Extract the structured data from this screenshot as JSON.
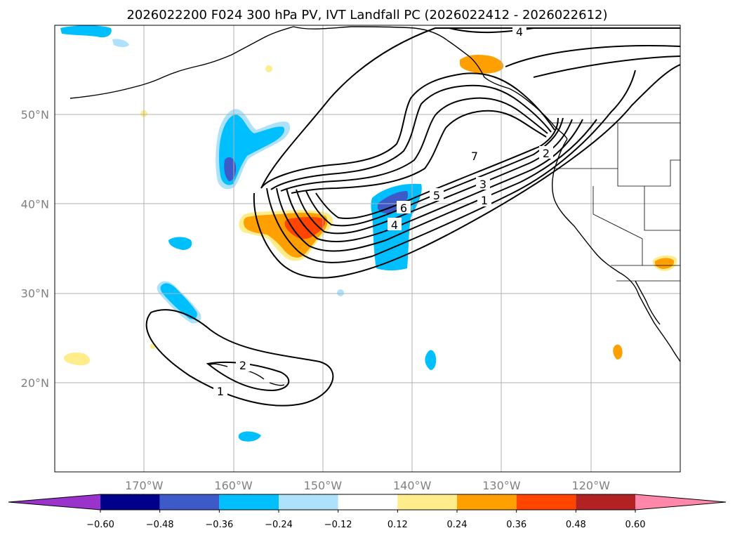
{
  "chart_data": {
    "type": "contour-map",
    "title": "2026022200 F024 300 hPa PV, IVT Landfall PC (2026022412 - 2026022612)",
    "map": {
      "projection": "PlateCarree",
      "lon_range": [
        -180,
        -110
      ],
      "lat_range": [
        10,
        60
      ],
      "gridlines": true,
      "lon_ticks": [
        -170,
        -160,
        -150,
        -140,
        -130,
        -120
      ],
      "lat_ticks": [
        20,
        30,
        40,
        50
      ],
      "lon_tick_labels": [
        "170°W",
        "160°W",
        "150°W",
        "140°W",
        "130°W",
        "120°W"
      ],
      "lat_tick_labels": [
        "20°N",
        "30°N",
        "40°N",
        "50°N"
      ]
    },
    "colorbar": {
      "extend": "both",
      "levels": [
        -0.6,
        -0.48,
        -0.36,
        -0.24,
        -0.12,
        0.12,
        0.24,
        0.36,
        0.48,
        0.6
      ],
      "tick_labels": [
        "−0.60",
        "−0.48",
        "−0.36",
        "−0.24",
        "−0.12",
        "0.12",
        "0.24",
        "0.36",
        "0.48",
        "0.60"
      ],
      "colors": [
        "#9933cc",
        "#00008b",
        "#3c5ac8",
        "#00bfff",
        "#aee1fa",
        "#ffffff",
        "#ffec8b",
        "#ffa000",
        "#ff4500",
        "#b22222",
        "#ff88aa"
      ]
    },
    "ivt_contour_labels": [
      "4",
      "7",
      "2",
      "5",
      "3",
      "1",
      "6",
      "4",
      "2",
      "1"
    ],
    "series": [
      {
        "name": "IVT landfall PC contours",
        "levels": [
          1,
          2,
          3,
          4,
          5,
          6,
          7
        ]
      },
      {
        "name": "300 hPa PV anomaly (shaded)",
        "range": [
          -0.6,
          0.6
        ]
      }
    ]
  }
}
